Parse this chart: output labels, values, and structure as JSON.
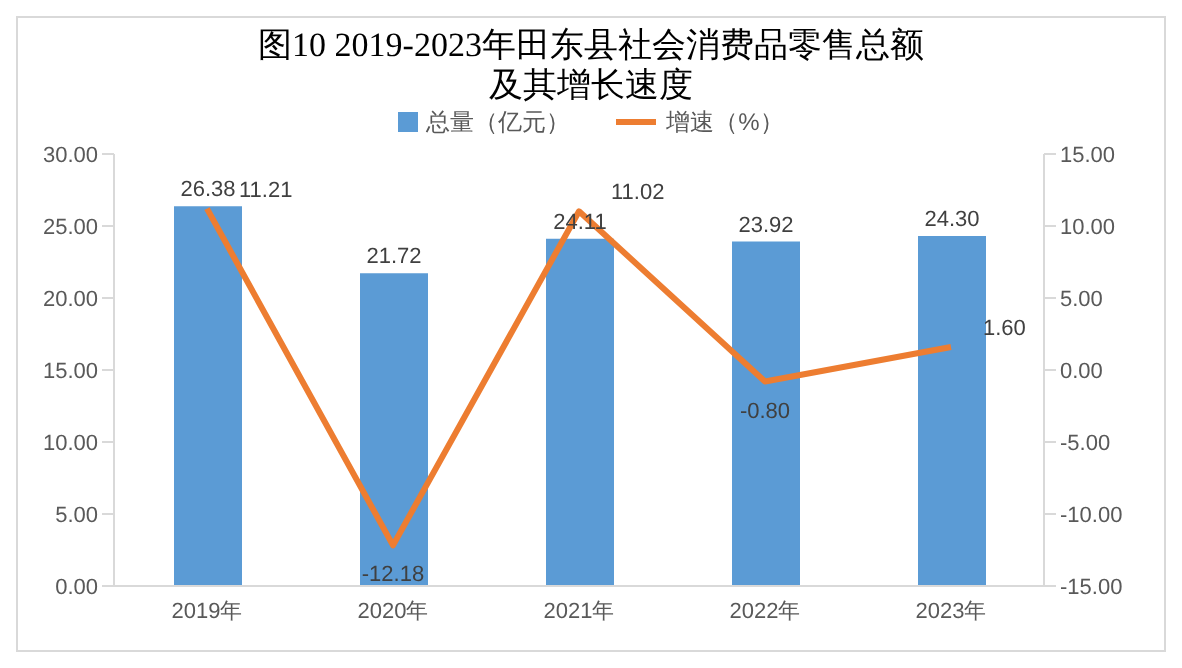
{
  "chart_data": {
    "type": "bar",
    "title": "图10  2019-2023年田东县社会消费品零售总额及其增长速度",
    "categories": [
      "2019年",
      "2020年",
      "2021年",
      "2022年",
      "2023年"
    ],
    "series": [
      {
        "name": "总量（亿元）",
        "color": "#5b9bd5",
        "values": [
          26.38,
          21.72,
          24.11,
          23.92,
          24.3
        ],
        "value_labels": [
          "26.38",
          "21.72",
          "24.11",
          "23.92",
          "24.30"
        ]
      },
      {
        "name": "增速（%）",
        "type": "line",
        "axis": "y2",
        "color": "#ed7d31",
        "values": [
          11.21,
          -12.18,
          11.02,
          -0.8,
          1.6
        ],
        "value_labels": [
          "11.21",
          "-12.18",
          "11.02",
          "-0.80",
          "1.60"
        ]
      }
    ],
    "ylim": [
      0,
      30
    ],
    "yticks": [
      {
        "value": 0,
        "label": "0.00"
      },
      {
        "value": 5,
        "label": "5.00"
      },
      {
        "value": 10,
        "label": "10.00"
      },
      {
        "value": 15,
        "label": "15.00"
      },
      {
        "value": 20,
        "label": "20.00"
      },
      {
        "value": 25,
        "label": "25.00"
      },
      {
        "value": 30,
        "label": "30.00"
      }
    ],
    "y2lim": [
      -15,
      15
    ],
    "y2ticks": [
      {
        "value": -15,
        "label": "-15.00"
      },
      {
        "value": -10,
        "label": "-10.00"
      },
      {
        "value": -5,
        "label": "-5.00"
      },
      {
        "value": 0,
        "label": "0.00"
      },
      {
        "value": 5,
        "label": "5.00"
      },
      {
        "value": 10,
        "label": "10.00"
      },
      {
        "value": 15,
        "label": "15.00"
      }
    ],
    "legend": "top",
    "marker": "none",
    "line_style": "solid"
  }
}
